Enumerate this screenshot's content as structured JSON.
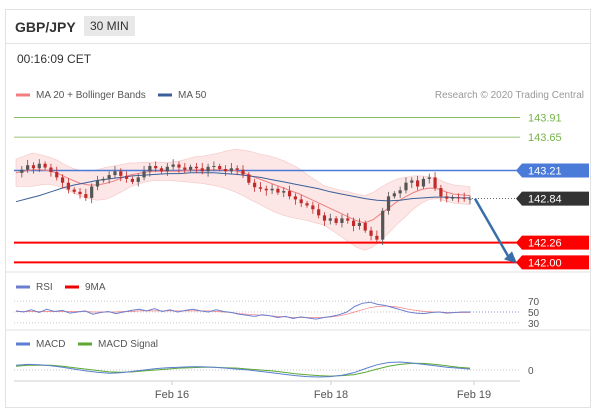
{
  "header": {
    "pair": "GBP/JPY",
    "timeframe": "30 MIN"
  },
  "timestamp": "00:16:09 CET",
  "colors": {
    "ma20": "#f08080",
    "ma50": "#3a5f9a",
    "bands": "#fbe2e2",
    "resistance": "#4a7bd8",
    "support": "#ff0000",
    "target_line": "#76b34a",
    "candle_up": "#555555",
    "candle_down": "#c22a2a",
    "arrow": "#3a6ea8",
    "current_box": "#333333",
    "rsi": "#6b7fd1",
    "rsi_ma": "#ee0000",
    "macd": "#5b7fd0",
    "macd_signal": "#5aa833"
  },
  "chart_data": [
    {
      "type": "candlestick",
      "legend": [
        {
          "label": "MA 20 + Bollinger Bands",
          "color": "#f08080"
        },
        {
          "label": "MA 50",
          "color": "#3a5f9a"
        }
      ],
      "credit": "Research © 2020 Trading Central",
      "ylim": [
        141.9,
        144.1
      ],
      "x_labels": [
        "Feb 16",
        "Feb 18",
        "Feb 19"
      ],
      "levels": [
        {
          "value": 143.91,
          "label": "143.91",
          "kind": "target"
        },
        {
          "value": 143.65,
          "label": "143.65",
          "kind": "target"
        },
        {
          "value": 143.21,
          "label": "143.21",
          "kind": "resistance"
        },
        {
          "value": 142.84,
          "label": "142.84",
          "kind": "current"
        },
        {
          "value": 142.26,
          "label": "142.26",
          "kind": "support"
        },
        {
          "value": 142.0,
          "label": "142.00",
          "kind": "support"
        }
      ],
      "price_path": [
        143.18,
        143.22,
        143.28,
        143.24,
        143.3,
        143.25,
        143.19,
        143.12,
        143.05,
        142.96,
        142.93,
        142.9,
        142.85,
        143.0,
        143.08,
        143.1,
        143.15,
        143.2,
        143.14,
        143.1,
        143.06,
        143.12,
        143.2,
        143.27,
        143.24,
        143.2,
        143.26,
        143.29,
        143.25,
        143.22,
        143.26,
        143.24,
        143.2,
        143.26,
        143.27,
        143.23,
        143.2,
        143.24,
        143.22,
        143.16,
        143.05,
        142.99,
        142.97,
        142.95,
        142.97,
        142.92,
        142.94,
        142.87,
        142.83,
        142.78,
        142.75,
        142.7,
        142.62,
        142.55,
        142.58,
        142.52,
        142.58,
        142.55,
        142.48,
        142.52,
        142.42,
        142.35,
        142.3,
        142.68,
        142.87,
        142.91,
        142.95,
        143.05,
        143.08,
        143.0,
        143.1,
        143.12,
        142.98,
        142.87,
        142.84,
        142.86,
        142.85,
        142.84,
        142.84
      ],
      "ma20_path": [
        143.18,
        143.2,
        143.22,
        143.22,
        143.21,
        143.18,
        143.13,
        143.08,
        143.04,
        143.02,
        143.02,
        143.04,
        143.07,
        143.11,
        143.15,
        143.17,
        143.19,
        143.2,
        143.2,
        143.2,
        143.2,
        143.21,
        143.22,
        143.22,
        143.22,
        143.22,
        143.22,
        143.21,
        143.18,
        143.14,
        143.1,
        143.06,
        143.02,
        142.98,
        142.94,
        142.9,
        142.85,
        142.8,
        142.75,
        142.7,
        142.65,
        142.6,
        142.55,
        142.52,
        142.56,
        142.64,
        142.72,
        142.8,
        142.86,
        142.92,
        142.96,
        142.98,
        142.97,
        142.93,
        142.9,
        142.89,
        142.88
      ],
      "ma50_path": [
        142.8,
        142.84,
        142.88,
        142.93,
        142.98,
        143.02,
        143.05,
        143.08,
        143.1,
        143.12,
        143.14,
        143.15,
        143.16,
        143.17,
        143.17,
        143.18,
        143.18,
        143.18,
        143.17,
        143.16,
        143.14,
        143.12,
        143.09,
        143.06,
        143.03,
        143.0,
        142.97,
        142.93,
        142.9,
        142.87,
        142.84,
        142.82,
        142.81,
        142.82,
        142.84,
        142.85,
        142.86,
        142.86,
        142.85,
        142.85
      ],
      "band_width": [
        0.18,
        0.2,
        0.22,
        0.2,
        0.18,
        0.17,
        0.16,
        0.16,
        0.17,
        0.18,
        0.2,
        0.21,
        0.2,
        0.18,
        0.16,
        0.14,
        0.13,
        0.12,
        0.12,
        0.12,
        0.13,
        0.15,
        0.17,
        0.18,
        0.2,
        0.22,
        0.25,
        0.28,
        0.3,
        0.32,
        0.33,
        0.35,
        0.36,
        0.36,
        0.35,
        0.33,
        0.3,
        0.28,
        0.26,
        0.28,
        0.3,
        0.33,
        0.35,
        0.36,
        0.36,
        0.35,
        0.33,
        0.3,
        0.26,
        0.22,
        0.18,
        0.15,
        0.13,
        0.12,
        0.12,
        0.12,
        0.12
      ]
    },
    {
      "type": "line",
      "name": "rsi",
      "legend": [
        {
          "label": "RSI",
          "color": "#6b7fd1"
        },
        {
          "label": "9MA",
          "color": "#ee0000"
        }
      ],
      "ylim": [
        28,
        72
      ],
      "levels": [
        {
          "value": 70,
          "label": "70"
        },
        {
          "value": 50,
          "label": "50"
        },
        {
          "value": 30,
          "label": "30"
        }
      ],
      "rsi": [
        52,
        50,
        54,
        49,
        55,
        51,
        53,
        48,
        50,
        52,
        46,
        49,
        51,
        47,
        50,
        53,
        55,
        52,
        56,
        51,
        54,
        50,
        53,
        55,
        52,
        50,
        54,
        51,
        49,
        46,
        44,
        42,
        45,
        43,
        40,
        42,
        38,
        41,
        39,
        37,
        40,
        42,
        45,
        50,
        60,
        66,
        68,
        64,
        62,
        58,
        54,
        50,
        48,
        47,
        49,
        50,
        48,
        49,
        50,
        50
      ],
      "ma9": [
        51,
        51,
        51,
        51,
        51,
        51,
        51,
        51,
        51,
        51,
        50,
        50,
        50,
        50,
        51,
        51,
        52,
        52,
        52,
        52,
        52,
        52,
        52,
        52,
        52,
        52,
        51,
        50,
        49,
        47,
        46,
        45,
        44,
        43,
        42,
        41,
        40,
        40,
        40,
        40,
        40,
        41,
        43,
        46,
        50,
        54,
        58,
        60,
        61,
        60,
        58,
        55,
        53,
        51,
        50,
        50,
        49,
        49,
        49,
        49
      ]
    },
    {
      "type": "line",
      "name": "macd",
      "legend": [
        {
          "label": "MACD",
          "color": "#5b7fd0"
        },
        {
          "label": "MACD Signal",
          "color": "#5aa833"
        }
      ],
      "ylim": [
        -0.32,
        0.32
      ],
      "levels": [
        {
          "value": 0,
          "label": "0"
        }
      ],
      "macd": [
        0.1,
        0.12,
        0.11,
        0.09,
        0.06,
        0.02,
        -0.02,
        -0.05,
        -0.07,
        -0.06,
        -0.03,
        0.0,
        0.03,
        0.05,
        0.06,
        0.07,
        0.07,
        0.06,
        0.04,
        0.02,
        0.0,
        -0.03,
        -0.06,
        -0.09,
        -0.12,
        -0.14,
        -0.15,
        -0.14,
        -0.11,
        -0.06,
        0.03,
        0.11,
        0.16,
        0.17,
        0.15,
        0.12,
        0.09,
        0.06,
        0.04,
        0.02
      ],
      "signal": [
        0.08,
        0.1,
        0.1,
        0.1,
        0.08,
        0.05,
        0.02,
        -0.01,
        -0.04,
        -0.05,
        -0.04,
        -0.02,
        0.0,
        0.02,
        0.04,
        0.05,
        0.06,
        0.06,
        0.05,
        0.04,
        0.02,
        0.0,
        -0.02,
        -0.05,
        -0.08,
        -0.1,
        -0.12,
        -0.13,
        -0.12,
        -0.1,
        -0.05,
        0.02,
        0.08,
        0.12,
        0.14,
        0.14,
        0.12,
        0.09,
        0.06,
        0.04
      ]
    }
  ]
}
